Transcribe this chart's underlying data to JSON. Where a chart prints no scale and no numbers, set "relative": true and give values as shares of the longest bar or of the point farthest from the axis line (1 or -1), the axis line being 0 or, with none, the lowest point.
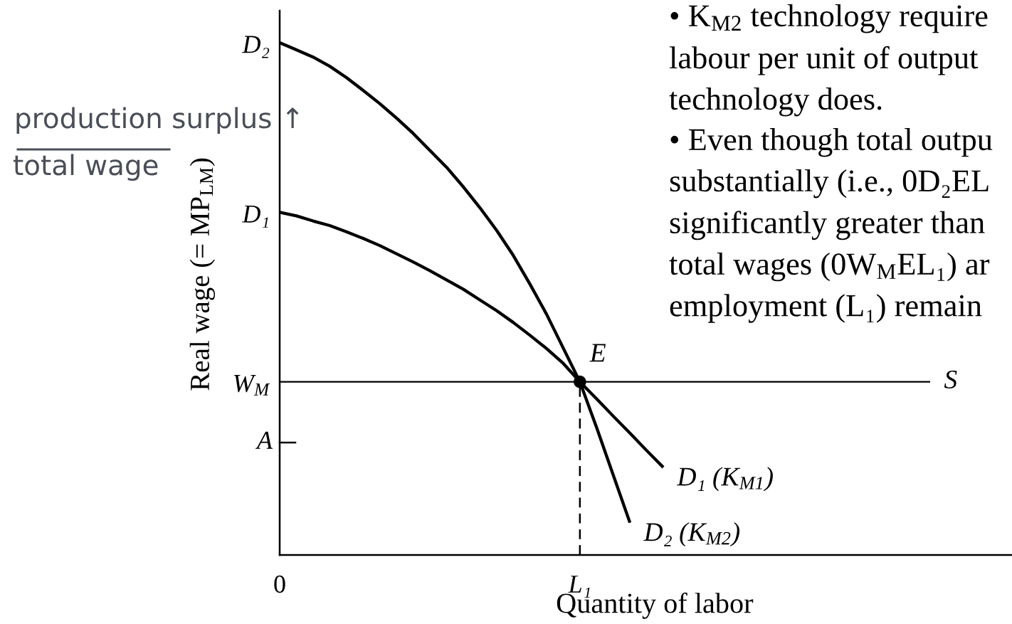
{
  "chart_data": {
    "type": "line",
    "relative": true,
    "xlabel": "Quantity of labor",
    "ylabel": "Real wage (= MP$_{LM}$)",
    "categories": [
      "0",
      null,
      null,
      null,
      null,
      null,
      null,
      null,
      null,
      null,
      null,
      null,
      null,
      null,
      null,
      null,
      null,
      null,
      "L₁",
      null,
      null,
      null,
      null,
      null,
      null,
      null,
      null,
      null,
      null,
      null,
      null,
      null,
      null,
      null,
      null,
      null,
      null,
      null,
      null,
      null
    ],
    "series": [
      {
        "name": "D₁ (K$_{M1}$)",
        "color": "#000000",
        "values": [
          0.669,
          0.662,
          0.652,
          0.643,
          0.631,
          0.618,
          0.604,
          0.588,
          0.572,
          0.555,
          0.537,
          0.519,
          0.498,
          0.477,
          0.454,
          0.429,
          0.403,
          0.374,
          0.338,
          0.305,
          0.271,
          0.238,
          0.204,
          0.171,
          null,
          null,
          null,
          null,
          null,
          null,
          null,
          null,
          null,
          null,
          null,
          null,
          null,
          null,
          null,
          null
        ]
      },
      {
        "name": "D₂ (K$_{M2}$)",
        "color": "#000000",
        "values": [
          1,
          0.986,
          0.972,
          0.954,
          0.932,
          0.907,
          0.881,
          0.853,
          0.823,
          0.79,
          0.757,
          0.719,
          0.678,
          0.634,
          0.585,
          0.529,
          0.47,
          0.404,
          0.338,
          0.249,
          0.156,
          0.063,
          null,
          null,
          null,
          null,
          null,
          null,
          null,
          null,
          null,
          null,
          null,
          null,
          null,
          null,
          null,
          null,
          null,
          null
        ]
      },
      {
        "name": "S",
        "color": "#000000",
        "values": [
          0.338,
          0.338,
          0.338,
          0.338,
          0.338,
          0.338,
          0.338,
          0.338,
          0.338,
          0.338,
          0.338,
          0.338,
          0.338,
          0.338,
          0.338,
          0.338,
          0.338,
          0.338,
          0.338,
          0.338,
          0.338,
          0.338,
          0.338,
          0.338,
          0.338,
          0.338,
          0.338,
          0.338,
          0.338,
          0.338,
          0.338,
          0.338,
          0.338,
          0.338,
          0.338,
          0.338,
          0.338,
          0.338,
          0.338,
          0.338
        ]
      },
      {
        "type": "lollipop",
        "name": "E",
        "color": "#000000",
        "line_style": "dashed",
        "marker": "circle",
        "values": [
          null,
          null,
          null,
          null,
          null,
          null,
          null,
          null,
          null,
          null,
          null,
          null,
          null,
          null,
          null,
          null,
          null,
          null,
          0.338,
          null,
          null,
          null,
          null,
          null,
          null,
          null,
          null,
          null,
          null,
          null,
          null,
          null,
          null,
          null,
          null,
          null,
          null,
          null,
          null,
          null
        ]
      }
    ],
    "annotations": [
      {
        "text": "W$_{M}$",
        "x": "0",
        "y": 0.338
      },
      {
        "text": "D₁",
        "x": "0",
        "y": 0.669
      },
      {
        "text": "D₂",
        "x": "0",
        "y": 1
      },
      "A",
      "• K$_{M2}$ technology require\nlabour per unit of output\ntechnology does.",
      "• Even though total outpu\nsubstantially (i.e., 0D₂EL\nsignificantly greater than\ntotal wages (0W$_{M}$EL₁) ar\nemployment (L₁) remain",
      "production surplus ↑",
      "total wage"
    ]
  }
}
